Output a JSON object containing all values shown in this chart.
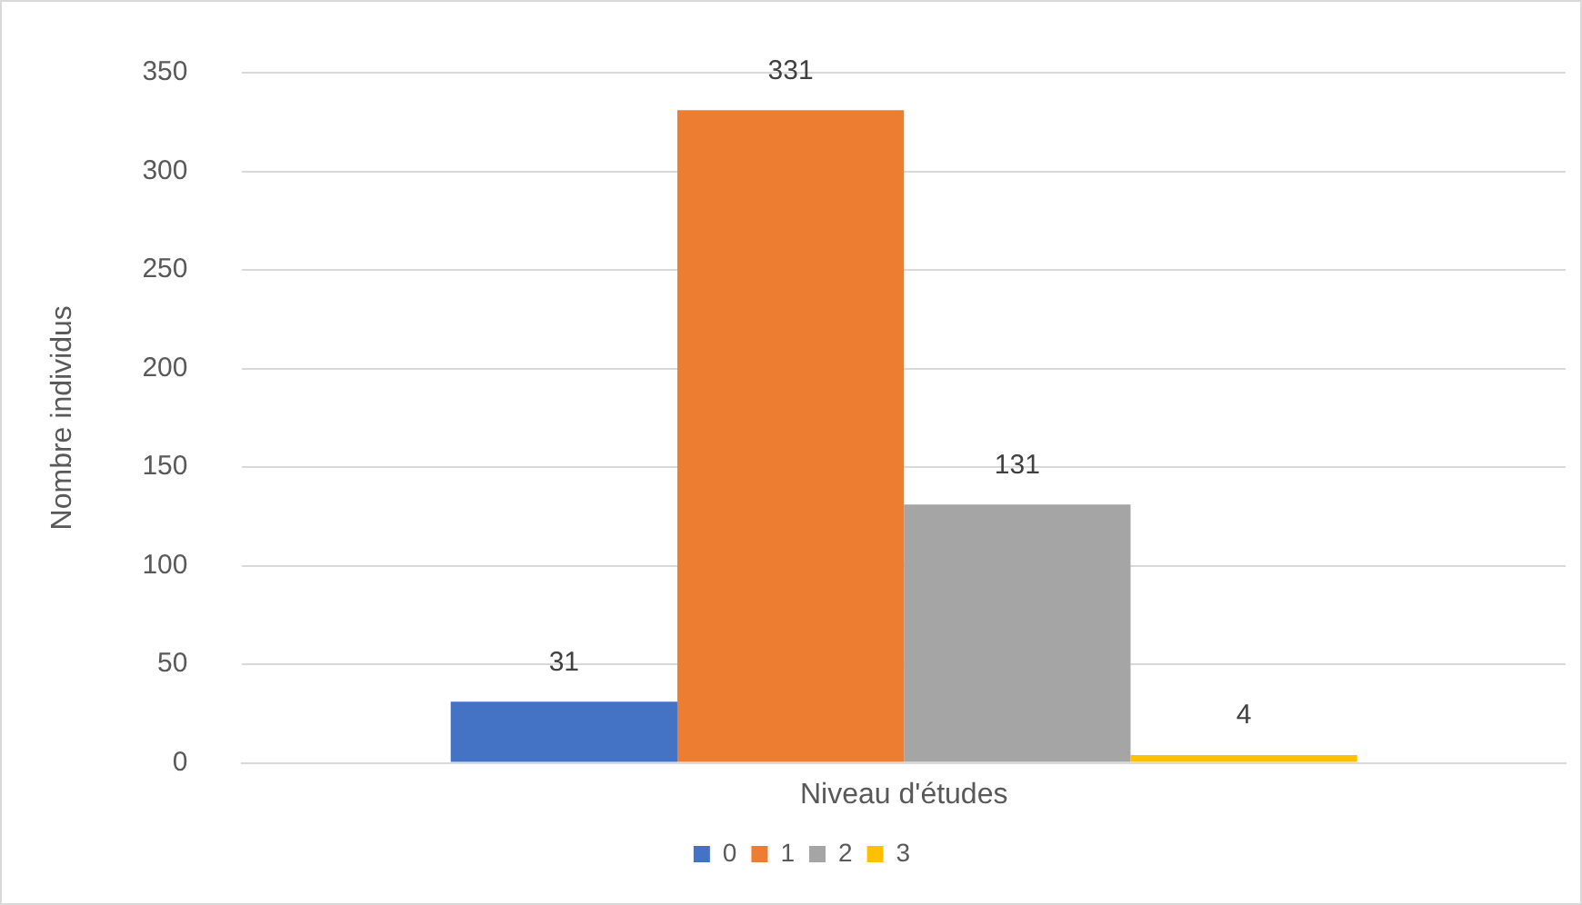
{
  "chart_data": {
    "type": "bar",
    "ylabel": "Nombre individus",
    "categories": [
      "Niveau d'études"
    ],
    "series": [
      {
        "name": "0",
        "color": "#4472c4",
        "values": [
          31
        ]
      },
      {
        "name": "1",
        "color": "#ed7d31",
        "values": [
          331
        ]
      },
      {
        "name": "2",
        "color": "#a5a5a5",
        "values": [
          131
        ]
      },
      {
        "name": "3",
        "color": "#ffc000",
        "values": [
          4
        ]
      }
    ],
    "ylim": [
      0,
      350
    ],
    "yticks": [
      0,
      50,
      100,
      150,
      200,
      250,
      300,
      350
    ],
    "grid": "y",
    "legend": "bottom",
    "data_labels": true
  }
}
